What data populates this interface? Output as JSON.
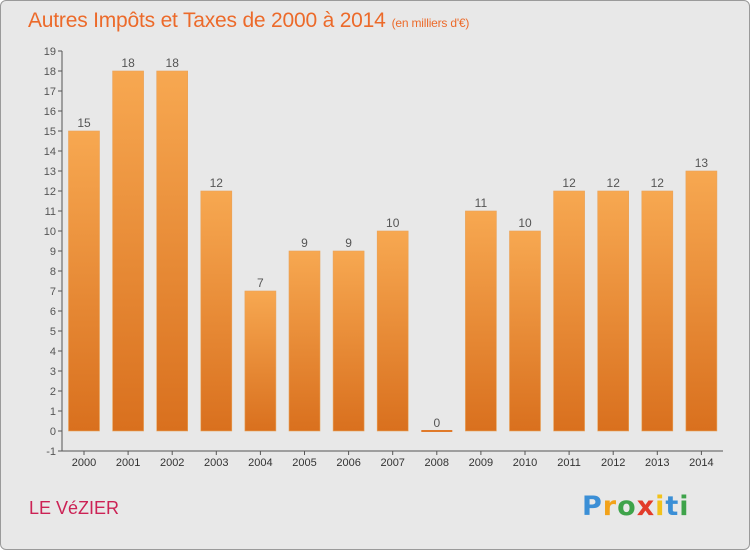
{
  "chart_data": {
    "type": "bar",
    "title": "Autres Impôts et Taxes de 2000 à 2014",
    "unit": "(en milliers d'€)",
    "categories": [
      "2000",
      "2001",
      "2002",
      "2003",
      "2004",
      "2005",
      "2006",
      "2007",
      "2008",
      "2009",
      "2010",
      "2011",
      "2012",
      "2013",
      "2014"
    ],
    "values": [
      15,
      18,
      18,
      12,
      7,
      9,
      9,
      10,
      0,
      11,
      10,
      12,
      12,
      12,
      13
    ],
    "yticks": [
      -1,
      0,
      1,
      2,
      3,
      4,
      5,
      6,
      7,
      8,
      9,
      10,
      11,
      12,
      13,
      14,
      15,
      16,
      17,
      18,
      19
    ],
    "ylim": [
      -1,
      19
    ],
    "grid": false,
    "colors": {
      "bar_top": "#f7a851",
      "bar_bottom": "#d9701e",
      "zero_bar": "#e07a2a",
      "axis": "#555555",
      "label": "#555555"
    }
  },
  "commune": "LE VéZIER",
  "brand": {
    "letters": [
      "P",
      "r",
      "o",
      "x",
      "i",
      "t",
      "i"
    ],
    "colors": [
      "#3b8fd6",
      "#f2a21a",
      "#3ea34a",
      "#e23b2a",
      "#f2c21a",
      "#3b8fd6",
      "#3ea34a"
    ]
  }
}
